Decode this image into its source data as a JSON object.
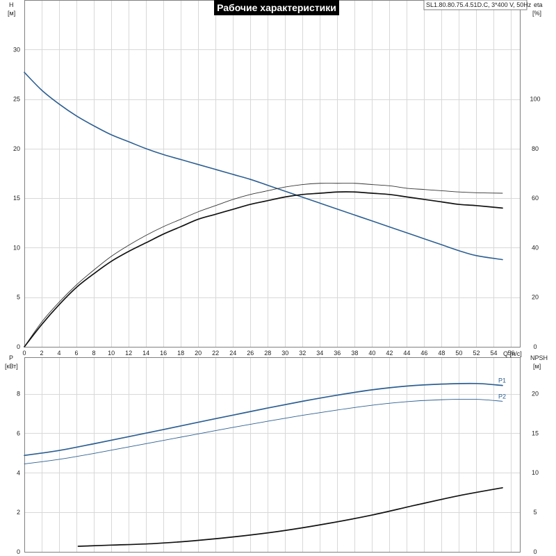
{
  "title": "Рабочие характеристики",
  "model": "SL1.80.80.75.4.51D.C, 3*400 V, 50Hz",
  "colors": {
    "blue": "#2c5f92",
    "black": "#111111",
    "darkgray": "#333333",
    "grid": "#d8d8d8"
  },
  "chart_data": [
    {
      "id": "top",
      "type": "line",
      "xlabel": "Q [л/с]",
      "xlim": [
        0,
        57
      ],
      "x_ticks": [
        0,
        2,
        4,
        6,
        8,
        10,
        12,
        14,
        16,
        18,
        20,
        22,
        24,
        26,
        28,
        30,
        32,
        34,
        36,
        38,
        40,
        42,
        44,
        46,
        48,
        50,
        52,
        54,
        56
      ],
      "left_axis": {
        "label_line1": "H",
        "label_line2": "[м]",
        "ylim": [
          0,
          35
        ],
        "ticks": [
          0,
          5,
          10,
          15,
          20,
          25,
          30
        ]
      },
      "right_axis": {
        "label_line1": "eta",
        "label_line2": "[%]",
        "ylim": [
          0,
          140
        ],
        "ticks": [
          0,
          20,
          40,
          60,
          80,
          100
        ]
      },
      "grid": true,
      "series": [
        {
          "id": "head",
          "axis": "left",
          "color": "#2c5f92",
          "width": 1.6,
          "x": [
            0,
            2,
            4,
            6,
            8,
            10,
            12,
            14,
            16,
            18,
            20,
            22,
            24,
            26,
            28,
            30,
            32,
            34,
            36,
            38,
            40,
            42,
            44,
            46,
            48,
            50,
            52,
            55
          ],
          "y": [
            27.7,
            25.9,
            24.5,
            23.3,
            22.3,
            21.4,
            20.7,
            20.0,
            19.4,
            18.9,
            18.4,
            17.9,
            17.4,
            16.9,
            16.3,
            15.7,
            15.1,
            14.5,
            13.9,
            13.3,
            12.7,
            12.1,
            11.5,
            10.9,
            10.3,
            9.7,
            9.2,
            8.8
          ]
        },
        {
          "id": "eta-upper",
          "axis": "right",
          "color": "#333333",
          "width": 0.9,
          "x": [
            0,
            2,
            4,
            6,
            8,
            10,
            12,
            14,
            16,
            18,
            20,
            22,
            24,
            26,
            28,
            30,
            32,
            34,
            36,
            38,
            40,
            42,
            44,
            46,
            48,
            50,
            52,
            55
          ],
          "y": [
            0,
            10,
            18,
            25,
            31,
            36.5,
            41,
            45,
            48.5,
            51.5,
            54.5,
            57,
            59.5,
            61.5,
            63,
            64.5,
            65.5,
            66,
            66,
            66,
            65.5,
            65,
            64,
            63.5,
            63,
            62.5,
            62.2,
            62
          ]
        },
        {
          "id": "eta-lower",
          "axis": "right",
          "color": "#111111",
          "width": 1.7,
          "x": [
            0,
            2,
            4,
            6,
            8,
            10,
            12,
            14,
            16,
            18,
            20,
            22,
            24,
            26,
            28,
            30,
            32,
            34,
            36,
            38,
            40,
            42,
            44,
            46,
            48,
            50,
            52,
            55
          ],
          "y": [
            0,
            9,
            17,
            24,
            29.5,
            34.5,
            38.5,
            42,
            45.5,
            48.5,
            51.5,
            53.5,
            55.5,
            57.5,
            59,
            60.5,
            61.5,
            62,
            62.5,
            62.5,
            62,
            61.5,
            60.5,
            59.5,
            58.5,
            57.5,
            57,
            56
          ]
        }
      ]
    },
    {
      "id": "bottom",
      "type": "line",
      "xlim": [
        0,
        57
      ],
      "x_ticks": [
        0,
        2,
        4,
        6,
        8,
        10,
        12,
        14,
        16,
        18,
        20,
        22,
        24,
        26,
        28,
        30,
        32,
        34,
        36,
        38,
        40,
        42,
        44,
        46,
        48,
        50,
        52,
        54,
        56
      ],
      "left_axis": {
        "label_line1": "P",
        "label_line2": "[кВт]",
        "ylim": [
          0,
          9.85
        ],
        "ticks": [
          0,
          2,
          4,
          6,
          8
        ]
      },
      "right_axis": {
        "label_line1": "NPSH",
        "label_line2": "[м]",
        "ylim": [
          0,
          24.6
        ],
        "ticks": [
          0,
          5,
          10,
          15,
          20
        ]
      },
      "grid": true,
      "series": [
        {
          "id": "P1",
          "name": "P1",
          "axis": "left",
          "color": "#2c5f92",
          "width": 1.7,
          "x": [
            0,
            4,
            8,
            12,
            16,
            20,
            24,
            28,
            32,
            36,
            40,
            44,
            48,
            52,
            55
          ],
          "y": [
            4.88,
            5.13,
            5.47,
            5.83,
            6.19,
            6.56,
            6.92,
            7.28,
            7.62,
            7.93,
            8.2,
            8.39,
            8.49,
            8.52,
            8.42
          ]
        },
        {
          "id": "P2",
          "name": "P2",
          "axis": "left",
          "color": "#2c5f92",
          "width": 0.9,
          "x": [
            0,
            4,
            8,
            12,
            16,
            20,
            24,
            28,
            32,
            36,
            40,
            44,
            48,
            52,
            55
          ],
          "y": [
            4.45,
            4.68,
            4.98,
            5.31,
            5.64,
            5.97,
            6.3,
            6.61,
            6.91,
            7.18,
            7.42,
            7.6,
            7.7,
            7.72,
            7.62
          ]
        },
        {
          "id": "NPSH",
          "axis": "right",
          "color": "#111111",
          "width": 1.7,
          "x": [
            6.2,
            10,
            15,
            20,
            25,
            30,
            35,
            40,
            45,
            50,
            55
          ],
          "y": [
            0.7,
            0.85,
            1.05,
            1.45,
            2.0,
            2.7,
            3.6,
            4.65,
            5.9,
            7.1,
            8.1
          ]
        }
      ]
    }
  ]
}
